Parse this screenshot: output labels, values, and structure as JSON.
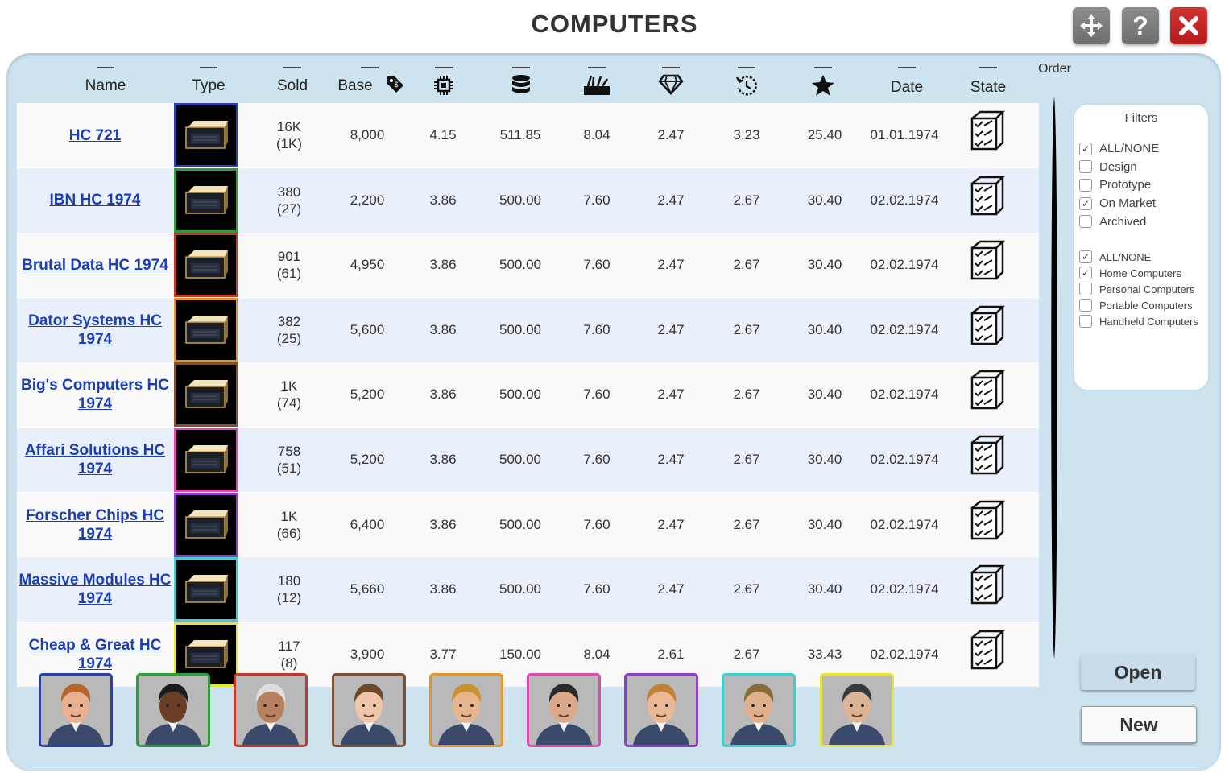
{
  "window": {
    "title": "COMPUTERS",
    "help_label": "?"
  },
  "columns": {
    "name": "Name",
    "type": "Type",
    "sold": "Sold",
    "base": "Base",
    "date": "Date",
    "state": "State",
    "order": "Order",
    "icons": [
      "price-tag-icon",
      "chip-icon",
      "storage-icon",
      "tools-icon",
      "diamond-icon",
      "time-icon",
      "star-icon"
    ]
  },
  "rows": [
    {
      "name": "HC 721",
      "frame_color": "#2c3fa8",
      "sold": "16K",
      "sold_sub": "(1K)",
      "base": "8,000",
      "cpu": "4.15",
      "storage": "511.85",
      "tools": "8.04",
      "quality": "2.47",
      "time": "3.23",
      "rating": "25.40",
      "date": "01.01.1974"
    },
    {
      "name": "IBN HC 1974",
      "frame_color": "#2e9e3b",
      "sold": "380",
      "sold_sub": "(27)",
      "base": "2,200",
      "cpu": "3.86",
      "storage": "500.00",
      "tools": "7.60",
      "quality": "2.47",
      "time": "2.67",
      "rating": "30.40",
      "date": "02.02.1974"
    },
    {
      "name": "Brutal Data HC 1974",
      "frame_color": "#c0392b",
      "sold": "901",
      "sold_sub": "(61)",
      "base": "4,950",
      "cpu": "3.86",
      "storage": "500.00",
      "tools": "7.60",
      "quality": "2.47",
      "time": "2.67",
      "rating": "30.40",
      "date": "02.02.1974"
    },
    {
      "name": "Dator Systems HC 1974",
      "frame_color": "#e0962c",
      "sold": "382",
      "sold_sub": "(25)",
      "base": "5,600",
      "cpu": "3.86",
      "storage": "500.00",
      "tools": "7.60",
      "quality": "2.47",
      "time": "2.67",
      "rating": "30.40",
      "date": "02.02.1974"
    },
    {
      "name": "Big's Computers HC 1974",
      "frame_color": "#7b5234",
      "sold": "1K",
      "sold_sub": "(74)",
      "base": "5,200",
      "cpu": "3.86",
      "storage": "500.00",
      "tools": "7.60",
      "quality": "2.47",
      "time": "2.67",
      "rating": "30.40",
      "date": "02.02.1974"
    },
    {
      "name": "Affari Solutions HC 1974",
      "frame_color": "#e04aa8",
      "sold": "758",
      "sold_sub": "(51)",
      "base": "5,200",
      "cpu": "3.86",
      "storage": "500.00",
      "tools": "7.60",
      "quality": "2.47",
      "time": "2.67",
      "rating": "30.40",
      "date": "02.02.1974"
    },
    {
      "name": "Forscher Chips HC 1974",
      "frame_color": "#8d3fc9",
      "sold": "1K",
      "sold_sub": "(66)",
      "base": "6,400",
      "cpu": "3.86",
      "storage": "500.00",
      "tools": "7.60",
      "quality": "2.47",
      "time": "2.67",
      "rating": "30.40",
      "date": "02.02.1974"
    },
    {
      "name": "Massive Modules HC 1974",
      "frame_color": "#3fcfcf",
      "sold": "180",
      "sold_sub": "(12)",
      "base": "5,660",
      "cpu": "3.86",
      "storage": "500.00",
      "tools": "7.60",
      "quality": "2.47",
      "time": "2.67",
      "rating": "30.40",
      "date": "02.02.1974"
    },
    {
      "name": "Cheap & Great HC 1974",
      "frame_color": "#e6e63a",
      "sold": "117",
      "sold_sub": "(8)",
      "base": "3,900",
      "cpu": "3.77",
      "storage": "150.00",
      "tools": "8.04",
      "quality": "2.61",
      "time": "2.67",
      "rating": "33.43",
      "date": "02.02.1974"
    }
  ],
  "filters": {
    "title": "Filters",
    "state_group": [
      {
        "label": "ALL/NONE",
        "checked": true
      },
      {
        "label": "Design",
        "checked": false
      },
      {
        "label": "Prototype",
        "checked": false
      },
      {
        "label": "On Market",
        "checked": true
      },
      {
        "label": "Archived",
        "checked": false
      }
    ],
    "type_group": [
      {
        "label": "ALL/NONE",
        "checked": true
      },
      {
        "label": "Home Computers",
        "checked": true
      },
      {
        "label": "Personal Computers",
        "checked": false
      },
      {
        "label": "Portable Computers",
        "checked": false
      },
      {
        "label": "Handheld Computers",
        "checked": false
      }
    ]
  },
  "avatars": [
    {
      "frame_color": "#2c3fa8",
      "skin": "#e8b08f",
      "hair": "#b5652e"
    },
    {
      "frame_color": "#2e9e3b",
      "skin": "#6b3f25",
      "hair": "#1d1d1d"
    },
    {
      "frame_color": "#c0392b",
      "skin": "#b98060",
      "hair": "#ddd"
    },
    {
      "frame_color": "#7b5234",
      "skin": "#f0c6a8",
      "hair": "#6b4b2c"
    },
    {
      "frame_color": "#e0962c",
      "skin": "#e6b48d",
      "hair": "#c8932f"
    },
    {
      "frame_color": "#e04aa8",
      "skin": "#dda88a",
      "hair": "#2a2a2a"
    },
    {
      "frame_color": "#8d3fc9",
      "skin": "#eab894",
      "hair": "#c08235"
    },
    {
      "frame_color": "#3fcfcf",
      "skin": "#e0b08c",
      "hair": "#8a6a35"
    },
    {
      "frame_color": "#e6e63a",
      "skin": "#dcb394",
      "hair": "#3a3a3a"
    }
  ],
  "buttons": {
    "open": "Open",
    "new": "New"
  }
}
